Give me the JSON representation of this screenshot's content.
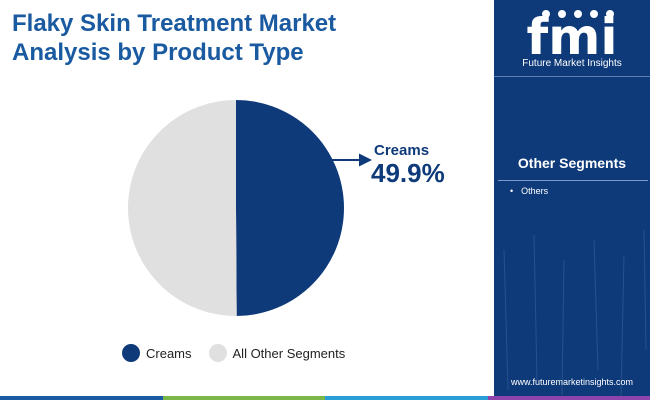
{
  "header": {
    "title_line1": "Flaky Skin Treatment Market",
    "title_line2": "Analysis by Product Type"
  },
  "chart_data": {
    "type": "pie",
    "slices": [
      {
        "label": "Creams",
        "value": 49.9,
        "color": "#0e3a7a"
      },
      {
        "label": "All Other Segments",
        "value": 50.1,
        "color": "#e0e0e0"
      }
    ],
    "annotation": {
      "label": "Creams",
      "value_text": "49.9%"
    },
    "legend_position": "bottom"
  },
  "legend": {
    "items": [
      {
        "label": "Creams",
        "color": "#0e3a7a"
      },
      {
        "label": "All Other Segments",
        "color": "#e0e0e0"
      }
    ]
  },
  "sidebar": {
    "logo_text": "fmi",
    "logo_caption": "Future Market Insights",
    "segments_title": "Other Segments",
    "segments": [
      "Others"
    ],
    "website": "www.futuremarketinsights.com"
  },
  "colors": {
    "title": "#1a5aa0",
    "brand_dark": "#0e3a7a",
    "bottom_bar": [
      "#1a5aa0",
      "#7ab648",
      "#2a9fd6",
      "#8e44ad"
    ]
  }
}
